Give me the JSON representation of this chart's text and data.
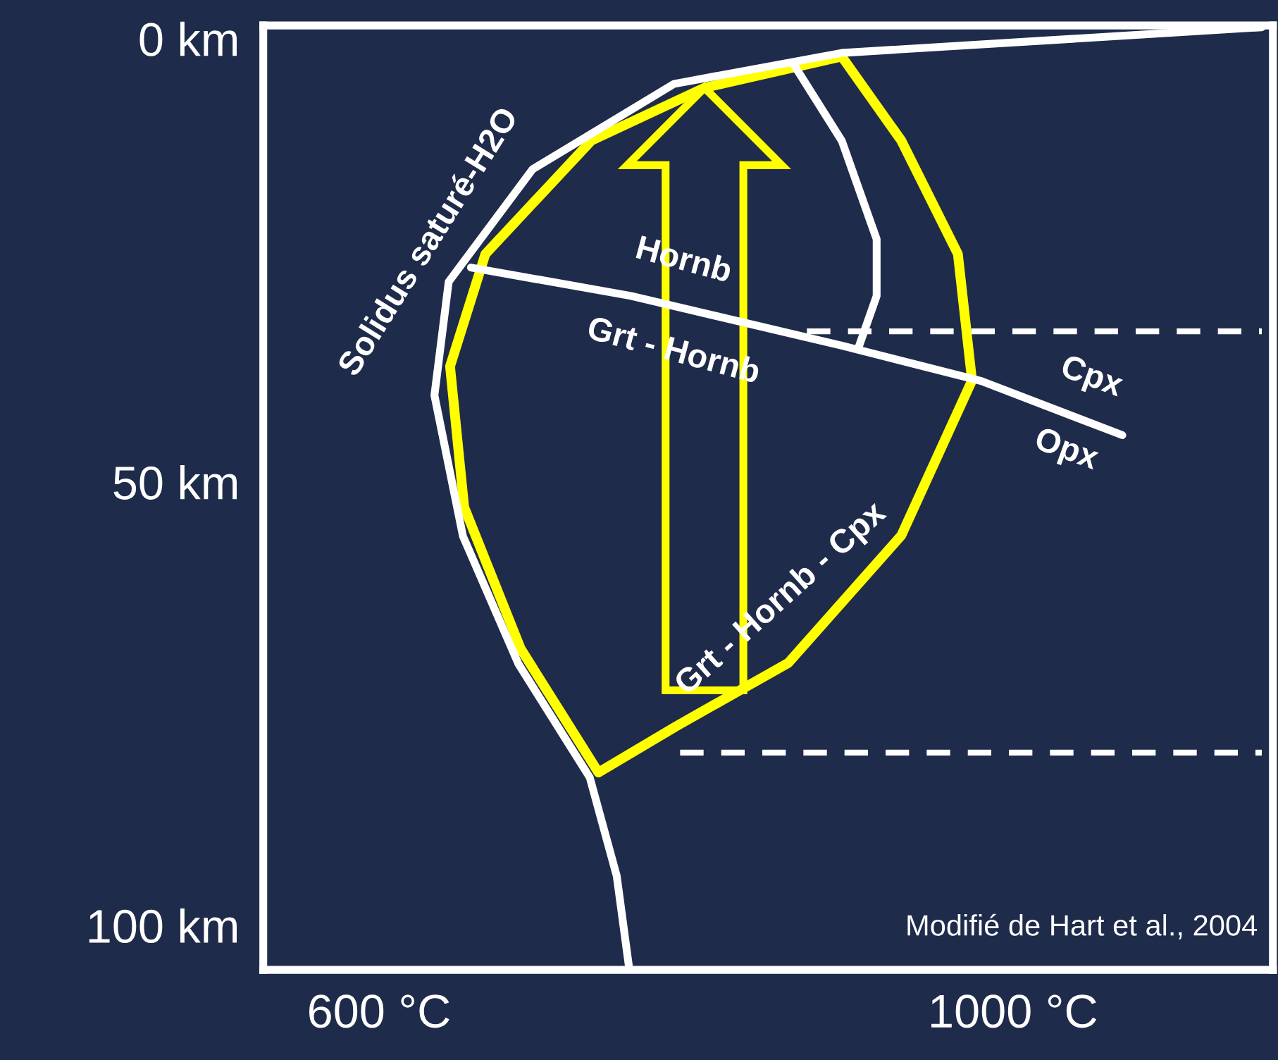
{
  "chart_data": {
    "type": "line",
    "xlim": [
      527,
      1164
    ],
    "ylim": [
      105,
      -1.5
    ],
    "xticks": [
      {
        "value": 600,
        "label": "600 °C"
      },
      {
        "value": 1000,
        "label": "1000 °C"
      }
    ],
    "yticks": [
      {
        "value": 0,
        "label": "0 km"
      },
      {
        "value": 50,
        "label": "50 km"
      },
      {
        "value": 100,
        "label": "100 km"
      }
    ],
    "grid": false,
    "legend": false,
    "marker": "none",
    "series": [
      {
        "color": "#ffffff",
        "x": [
          1157,
          892,
          786,
          697,
          644,
          635,
          653,
          688,
          733,
          750,
          758
        ],
        "values": [
          -1.3,
          1.6,
          5.1,
          14.7,
          27.4,
          40.2,
          56.1,
          70.5,
          83.3,
          94.4,
          105
        ]
      },
      {
        "color": "#ffffff",
        "x": [
          658,
          759,
          892,
          980,
          1069
        ],
        "values": [
          25.8,
          29,
          34.6,
          38.6,
          44.7
        ]
      },
      {
        "color": "#ffffff",
        "x": [
          861,
          892,
          914,
          914,
          903
        ],
        "values": [
          2.7,
          11.5,
          22.6,
          29,
          34.6
        ]
      },
      {
        "color": "#ffffff",
        "line_style": "dashed",
        "x": [
          870,
          1157
        ],
        "values": [
          33,
          33
        ]
      },
      {
        "color": "#ffffff",
        "line_style": "dashed",
        "x": [
          790,
          1157
        ],
        "values": [
          80.5,
          80.5
        ]
      }
    ],
    "annotations": [
      "Solidus saturé-H2O",
      "Hornb",
      "Grt - Hornb",
      "Cpx",
      "Opx",
      "Grt - Hornb - Cpx",
      "Modifié de Hart et al., 2004"
    ]
  }
}
